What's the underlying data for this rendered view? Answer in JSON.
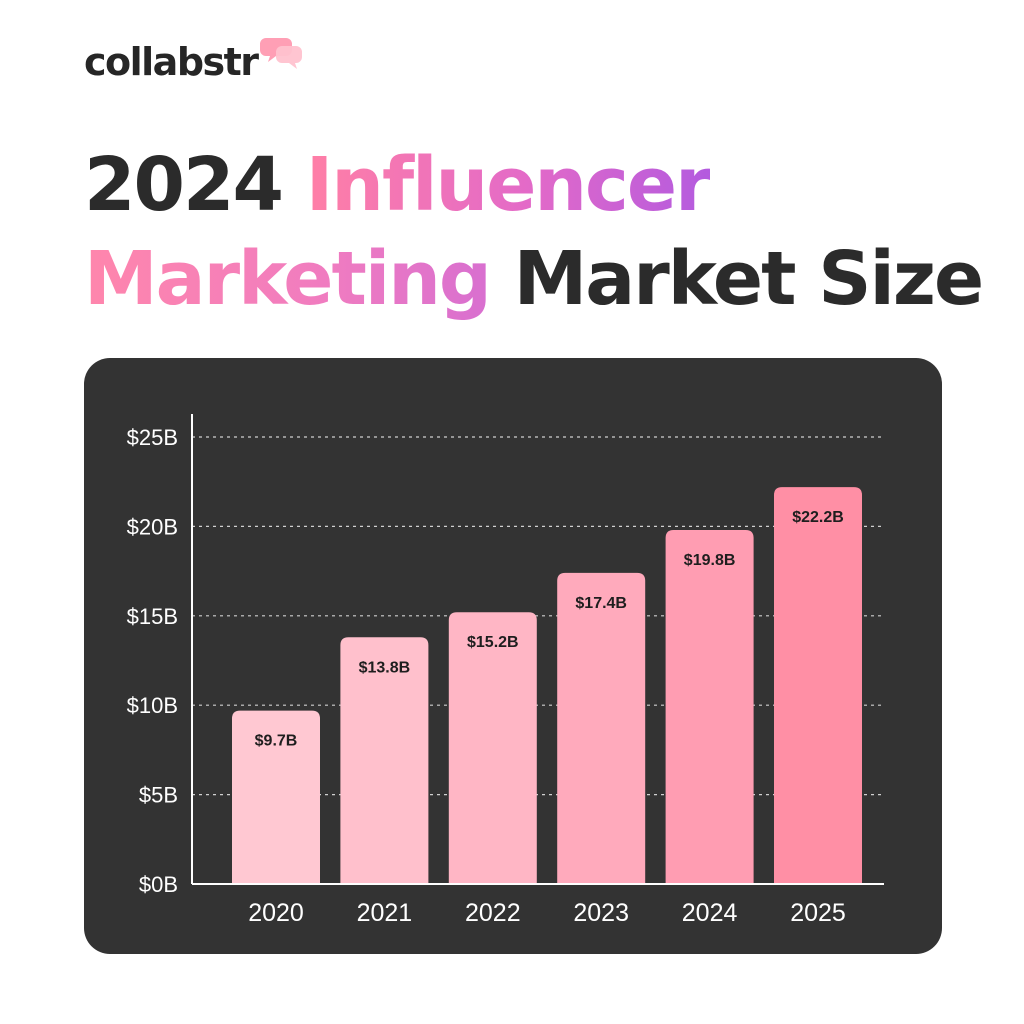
{
  "brand": {
    "name": "collabstr",
    "icon": "speech-bubbles-icon",
    "icon_colors": [
      "#ff9fb5",
      "#ffc2cf"
    ]
  },
  "headline": {
    "year": "2024",
    "word_accent_1": "Influencer",
    "word_accent_2": "Marketing",
    "rest": "Market Size",
    "text_color": "#2b2b2b"
  },
  "chart_data": {
    "type": "bar",
    "categories": [
      "2020",
      "2021",
      "2022",
      "2023",
      "2024",
      "2025"
    ],
    "values": [
      9.7,
      13.8,
      15.2,
      17.4,
      19.8,
      22.2
    ],
    "data_labels": [
      "$9.7B",
      "$13.8B",
      "$15.2B",
      "$17.4B",
      "$19.8B",
      "$22.2B"
    ],
    "y_ticks": [
      0,
      5,
      10,
      15,
      20,
      25
    ],
    "y_tick_labels": [
      "$0B",
      "$5B",
      "$10B",
      "$15B",
      "$20B",
      "$25B"
    ],
    "ylim": [
      0,
      25
    ],
    "grid": "horizontal dotted",
    "bar_colors": [
      "#ffc8d2",
      "#ffc0cc",
      "#ffb6c5",
      "#ffaabc",
      "#ff9db2",
      "#ff8fa5"
    ],
    "background": "#333333",
    "title": "",
    "xlabel": "",
    "ylabel": ""
  }
}
